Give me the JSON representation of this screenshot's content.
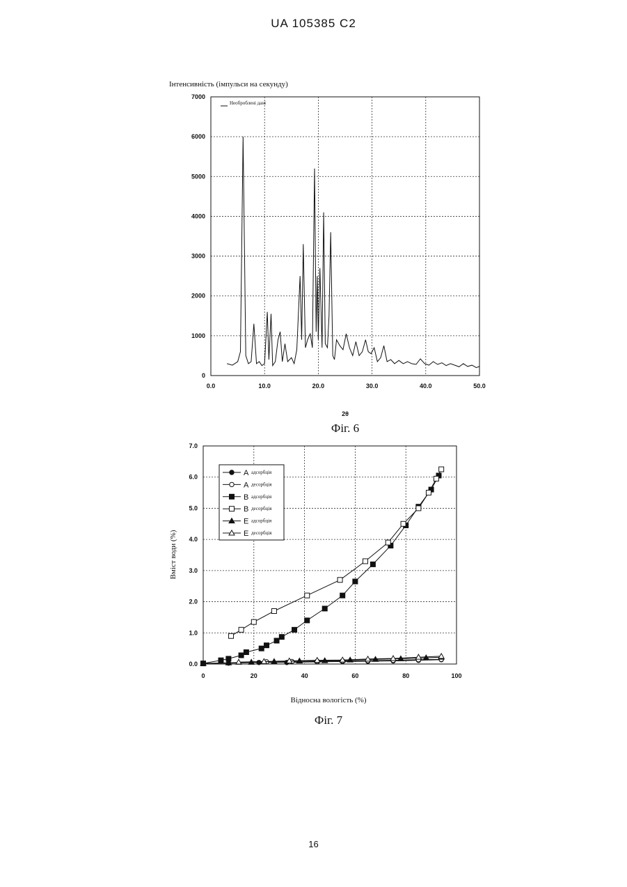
{
  "header": {
    "text": "UA   105385   C2"
  },
  "page_number": "16",
  "fig6": {
    "caption": "Фіг. 6",
    "legend_label": "Необроблені дані"
  },
  "fig7": {
    "caption": "Фіг. 7"
  },
  "chart_data": [
    {
      "type": "line",
      "title": "",
      "ylabel": "Інтенсивність (імпульси на секунду)",
      "xlabel": "2θ",
      "xlim": [
        0,
        50
      ],
      "ylim": [
        0,
        7000
      ],
      "xticks": [
        "0.0",
        "10.0",
        "20.0",
        "30.0",
        "40.0",
        "50.0"
      ],
      "yticks": [
        "0",
        "1000",
        "2000",
        "3000",
        "4000",
        "5000",
        "6000",
        "7000"
      ],
      "grid": true,
      "legend_position": "top-left",
      "series": [
        {
          "name": "Необроблені дані",
          "x": [
            3.0,
            4.0,
            5.0,
            5.5,
            6.0,
            6.5,
            7.0,
            7.5,
            8.0,
            8.5,
            9.0,
            9.5,
            10.0,
            10.5,
            10.8,
            11.2,
            11.5,
            12.0,
            12.5,
            12.9,
            13.3,
            13.8,
            14.3,
            15.0,
            15.5,
            16.0,
            16.6,
            16.9,
            17.2,
            17.6,
            18.0,
            18.5,
            18.9,
            19.3,
            19.6,
            19.8,
            20.0,
            20.3,
            20.7,
            21.0,
            21.3,
            21.7,
            22.0,
            22.3,
            22.7,
            23.0,
            23.4,
            24.0,
            24.6,
            25.2,
            25.8,
            26.4,
            27.0,
            27.6,
            28.2,
            28.8,
            29.3,
            29.8,
            30.4,
            31.0,
            31.6,
            32.2,
            32.8,
            33.5,
            34.2,
            35.0,
            35.8,
            36.6,
            37.4,
            38.2,
            39.0,
            39.8,
            40.6,
            41.4,
            42.2,
            43.0,
            43.8,
            44.6,
            45.4,
            46.2,
            47.0,
            47.8,
            48.6,
            49.4,
            50.0
          ],
          "y": [
            300,
            260,
            350,
            600,
            6000,
            500,
            300,
            350,
            1300,
            300,
            350,
            250,
            300,
            1600,
            400,
            1550,
            250,
            350,
            900,
            1100,
            350,
            800,
            350,
            450,
            300,
            650,
            2500,
            900,
            3300,
            700,
            900,
            1050,
            700,
            5200,
            1100,
            2500,
            900,
            2700,
            700,
            4100,
            800,
            700,
            1500,
            3600,
            500,
            400,
            900,
            750,
            650,
            1050,
            700,
            500,
            850,
            500,
            600,
            900,
            600,
            550,
            700,
            350,
            450,
            750,
            350,
            400,
            300,
            380,
            300,
            350,
            300,
            280,
            420,
            300,
            260,
            350,
            280,
            320,
            250,
            300,
            260,
            220,
            300,
            230,
            260,
            200,
            230
          ]
        }
      ]
    },
    {
      "type": "line",
      "title": "",
      "ylabel": "Вміст води (%)",
      "xlabel": "Відносна вологість (%)",
      "xlim": [
        0,
        100
      ],
      "ylim": [
        0,
        7
      ],
      "xticks": [
        "0",
        "20",
        "40",
        "60",
        "80",
        "100"
      ],
      "yticks": [
        "0.0",
        "1.0",
        "2.0",
        "3.0",
        "4.0",
        "5.0",
        "6.0",
        "7.0"
      ],
      "grid": true,
      "legend_position": "top-left",
      "series": [
        {
          "name": "адсорбція",
          "label": "A",
          "marker": "circle",
          "filled": true,
          "x": [
            0,
            10,
            22,
            33,
            45,
            55,
            65,
            75,
            85,
            94
          ],
          "y": [
            0.02,
            0.03,
            0.05,
            0.05,
            0.07,
            0.08,
            0.09,
            0.1,
            0.12,
            0.14
          ]
        },
        {
          "name": "десорбція",
          "label": "A",
          "marker": "circle",
          "filled": false,
          "x": [
            94,
            85,
            75,
            65,
            55,
            45,
            35,
            25
          ],
          "y": [
            0.15,
            0.14,
            0.12,
            0.11,
            0.1,
            0.09,
            0.08,
            0.07
          ]
        },
        {
          "name": "адсорбція",
          "label": "B",
          "marker": "square",
          "filled": true,
          "x": [
            0,
            7,
            10,
            15,
            17,
            23,
            25,
            29,
            31,
            36,
            41,
            48,
            55,
            60,
            67,
            74,
            80,
            85,
            90,
            93
          ],
          "y": [
            0.02,
            0.12,
            0.17,
            0.28,
            0.38,
            0.5,
            0.6,
            0.75,
            0.87,
            1.1,
            1.4,
            1.78,
            2.2,
            2.65,
            3.2,
            3.8,
            4.45,
            5.05,
            5.6,
            6.05
          ]
        },
        {
          "name": "десорбція",
          "label": "B",
          "marker": "square",
          "filled": false,
          "x": [
            94,
            92,
            89,
            85,
            79,
            73,
            64,
            54,
            41,
            28,
            20,
            15,
            11
          ],
          "y": [
            6.25,
            5.95,
            5.5,
            5.0,
            4.5,
            3.9,
            3.3,
            2.7,
            2.2,
            1.7,
            1.35,
            1.1,
            0.9
          ]
        },
        {
          "name": "адсорбція",
          "label": "E",
          "marker": "triangle",
          "filled": true,
          "x": [
            0,
            10,
            19,
            28,
            38,
            48,
            58,
            68,
            78,
            88,
            94
          ],
          "y": [
            0.02,
            0.04,
            0.06,
            0.08,
            0.1,
            0.11,
            0.13,
            0.15,
            0.17,
            0.2,
            0.22
          ]
        },
        {
          "name": "десорбція",
          "label": "E",
          "marker": "triangle",
          "filled": false,
          "x": [
            94,
            85,
            75,
            65,
            55,
            45,
            34,
            24,
            14
          ],
          "y": [
            0.25,
            0.22,
            0.18,
            0.16,
            0.13,
            0.12,
            0.1,
            0.08,
            0.06
          ]
        }
      ]
    }
  ]
}
